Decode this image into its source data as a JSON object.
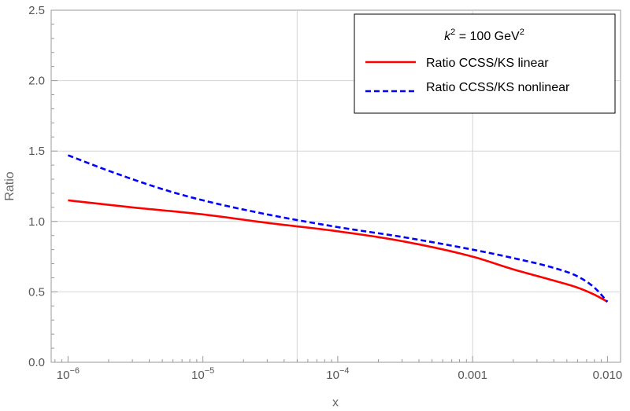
{
  "chart_data": {
    "type": "line",
    "title": "",
    "xlabel": "x",
    "ylabel": "Ratio",
    "xscale": "log",
    "xlim": [
      7.5e-07,
      0.0125
    ],
    "ylim": [
      0,
      2.5
    ],
    "grid": true,
    "x_ticks": [
      {
        "value": 1e-06,
        "base": "10",
        "exp": "−6"
      },
      {
        "value": 1e-05,
        "base": "10",
        "exp": "−5"
      },
      {
        "value": 0.0001,
        "base": "10",
        "exp": "−4"
      },
      {
        "value": 0.001,
        "label": "0.001"
      },
      {
        "value": 0.01,
        "label": "0.010"
      }
    ],
    "y_ticks": [
      {
        "value": 0.0,
        "label": "0.0"
      },
      {
        "value": 0.5,
        "label": "0.5"
      },
      {
        "value": 1.0,
        "label": "1.0"
      },
      {
        "value": 1.5,
        "label": "1.5"
      },
      {
        "value": 2.0,
        "label": "2.0"
      },
      {
        "value": 2.5,
        "label": "2.5"
      }
    ],
    "gridlines_x": [
      5e-05,
      0.001
    ],
    "gridlines_y": [
      0.5,
      1.0,
      1.5,
      2.0
    ],
    "legend": {
      "position": "top-right",
      "title_var": "k",
      "title_exp": "2",
      "title_mid": " = 100 GeV",
      "title_exp2": "2"
    },
    "series": [
      {
        "name": "Ratio CCSS/KS linear",
        "color": "#ff0000",
        "style": "solid",
        "x": [
          1e-06,
          3e-06,
          1e-05,
          3e-05,
          0.0001,
          0.0003,
          0.001,
          0.002,
          0.004,
          0.006,
          0.008,
          0.01
        ],
        "y": [
          1.15,
          1.1,
          1.05,
          0.99,
          0.93,
          0.86,
          0.75,
          0.66,
          0.58,
          0.53,
          0.48,
          0.43
        ]
      },
      {
        "name": "Ratio CCSS/KS nonlinear",
        "color": "#0000ff",
        "style": "dashed",
        "x": [
          1e-06,
          2e-06,
          5e-06,
          1e-05,
          3e-05,
          0.0001,
          0.0003,
          0.001,
          0.002,
          0.004,
          0.006,
          0.008,
          0.01
        ],
        "y": [
          1.47,
          1.36,
          1.23,
          1.15,
          1.05,
          0.96,
          0.89,
          0.8,
          0.74,
          0.67,
          0.61,
          0.53,
          0.43
        ]
      }
    ]
  }
}
